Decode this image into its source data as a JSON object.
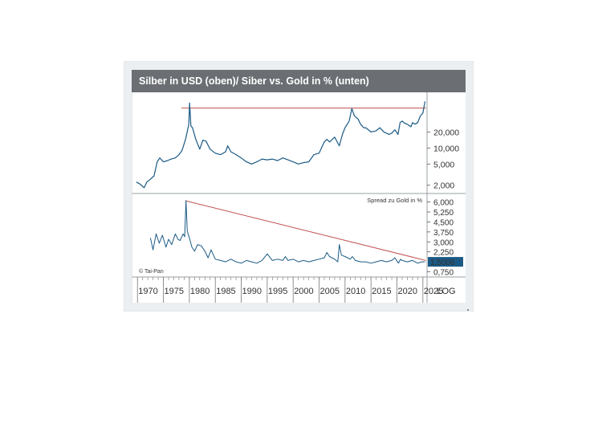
{
  "title": "Silber in USD (oben)/ Siber vs. Gold in % (unten)",
  "copyright": "© Tai-Pan",
  "scale_label": "LOG",
  "colors": {
    "header_bg": "#6b6f73",
    "line": "#1b5a85",
    "trend": "#c0504d",
    "badge_bg": "#1b5a85",
    "frame": "#eceff1"
  },
  "chart_data": [
    {
      "type": "line",
      "panel": "top",
      "title": "Silber in USD",
      "y_scale": "log",
      "y_ticks": [
        "20,000",
        "10,000",
        "5,000",
        "2,000"
      ],
      "y_tick_values": [
        20000,
        10000,
        5000,
        2000
      ],
      "ylim": [
        1400,
        90000
      ],
      "x_range": [
        1969.5,
        2025.8
      ],
      "series": [
        {
          "x": [
            1969.8,
            1970.5,
            1971.3,
            1971.8,
            1972.5,
            1973.2,
            1973.8,
            1974.3,
            1975.0,
            1975.8,
            1976.5,
            1977.3,
            1978.0,
            1978.6,
            1979.3,
            1979.9,
            1980.05,
            1980.3,
            1980.6,
            1981.2,
            1982.0,
            1982.6,
            1983.2,
            1984.0,
            1985.0,
            1986.0,
            1987.0,
            1987.4,
            1988.0,
            1989.0,
            1990.0,
            1991.0,
            1992.0,
            1993.0,
            1994.0,
            1995.0,
            1996.0,
            1997.0,
            1998.0,
            1999.0,
            2000.0,
            2001.0,
            2002.0,
            2003.0,
            2004.0,
            2005.0,
            2006.0,
            2006.5,
            2007.0,
            2008.0,
            2008.9,
            2009.5,
            2010.0,
            2010.8,
            2011.3,
            2011.8,
            2012.5,
            2013.0,
            2013.6,
            2014.0,
            2015.0,
            2016.0,
            2016.7,
            2017.5,
            2018.5,
            2019.0,
            2019.6,
            2020.2,
            2020.6,
            2021.0,
            2021.5,
            2022.0,
            2022.7,
            2023.0,
            2023.5,
            2024.0,
            2024.5,
            2025.0,
            2025.4
          ],
          "y": [
            2300,
            2100,
            1800,
            2300,
            2600,
            3000,
            5500,
            6500,
            5500,
            5800,
            6200,
            6500,
            7500,
            9000,
            15000,
            28000,
            70000,
            26000,
            24000,
            15000,
            9500,
            14000,
            13500,
            9500,
            8000,
            7500,
            8500,
            11000,
            8500,
            7500,
            6500,
            5500,
            5000,
            5500,
            6200,
            6000,
            6200,
            5800,
            6500,
            6000,
            5500,
            5000,
            5300,
            5500,
            7500,
            8000,
            13000,
            14500,
            13000,
            16000,
            11000,
            18000,
            24000,
            32000,
            55000,
            40000,
            35000,
            28000,
            24000,
            24000,
            20000,
            21000,
            24000,
            20000,
            18000,
            19000,
            22000,
            18000,
            30000,
            32000,
            29000,
            28000,
            25000,
            30000,
            28000,
            30000,
            40000,
            45000,
            75000
          ]
        }
      ],
      "trendline": {
        "x": [
          1978.5,
          2025.6
        ],
        "y": [
          56000,
          56000
        ]
      }
    },
    {
      "type": "line",
      "panel": "bottom",
      "title": "Spread zu Gold in %",
      "y_scale": "linear",
      "y_ticks": [
        "6,000",
        "5,250",
        "4,500",
        "3,750",
        "3,000",
        "2,250",
        "0,750"
      ],
      "y_tick_values": [
        6.0,
        5.25,
        4.5,
        3.75,
        3.0,
        2.25,
        0.75
      ],
      "ylim": [
        0.6,
        6.4
      ],
      "current_value": "1,5006",
      "current_value_numeric": 1.5006,
      "x_range": [
        1969.5,
        2025.8
      ],
      "series": [
        {
          "x": [
            1972.5,
            1973.0,
            1973.6,
            1974.2,
            1974.8,
            1975.5,
            1976.0,
            1976.6,
            1977.3,
            1977.8,
            1978.2,
            1978.8,
            1979.1,
            1979.35,
            1979.6,
            1980.0,
            1980.5,
            1981.0,
            1981.6,
            1982.3,
            1983.0,
            1983.6,
            1984.2,
            1985.0,
            1986.0,
            1987.0,
            1988.0,
            1989.0,
            1990.0,
            1991.0,
            1992.0,
            1993.0,
            1994.0,
            1995.0,
            1996.0,
            1997.0,
            1998.0,
            1998.5,
            1999.0,
            2000.0,
            2001.0,
            2002.0,
            2003.0,
            2004.0,
            2005.0,
            2006.0,
            2006.5,
            2007.0,
            2008.0,
            2008.6,
            2008.9,
            2009.3,
            2010.0,
            2011.0,
            2011.4,
            2012.0,
            2013.0,
            2014.0,
            2015.0,
            2016.0,
            2017.0,
            2018.0,
            2019.0,
            2019.6,
            2020.3,
            2020.7,
            2021.0,
            2022.0,
            2023.0,
            2024.0,
            2024.8,
            2025.4
          ],
          "y": [
            3.3,
            2.4,
            3.6,
            2.9,
            3.5,
            2.6,
            3.2,
            2.8,
            3.6,
            3.2,
            3.1,
            3.6,
            3.4,
            6.1,
            3.8,
            3.3,
            2.6,
            2.3,
            2.8,
            2.7,
            2.3,
            1.8,
            2.4,
            1.7,
            1.6,
            1.5,
            1.7,
            1.5,
            1.4,
            1.6,
            1.5,
            1.4,
            1.6,
            2.1,
            1.6,
            1.7,
            1.6,
            1.9,
            1.6,
            1.7,
            1.5,
            1.6,
            1.5,
            1.6,
            1.7,
            1.8,
            2.2,
            1.9,
            1.7,
            1.5,
            2.8,
            2.0,
            1.9,
            1.7,
            1.9,
            1.6,
            1.5,
            1.5,
            1.4,
            1.5,
            1.6,
            1.5,
            1.6,
            1.8,
            1.4,
            1.7,
            1.6,
            1.5,
            1.6,
            1.4,
            1.5,
            1.5
          ]
        }
      ],
      "trendline": {
        "x": [
          1979.2,
          2025.6
        ],
        "y": [
          6.1,
          1.6
        ]
      }
    }
  ],
  "x_axis": {
    "tick_labels": [
      "1970",
      "1975",
      "1980",
      "1985",
      "1990",
      "1995",
      "2000",
      "2005",
      "2010",
      "2015",
      "2020",
      "2025"
    ],
    "tick_values": [
      1970,
      1975,
      1980,
      1985,
      1990,
      1995,
      2000,
      2005,
      2010,
      2015,
      2020,
      2025
    ]
  }
}
